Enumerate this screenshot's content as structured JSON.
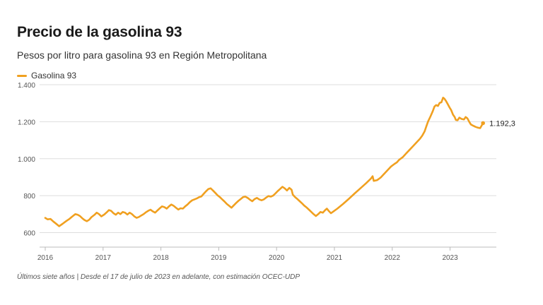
{
  "header": {
    "title": "Precio de la gasolina 93",
    "subtitle": "Pesos por litro para gasolina 93 en Región Metropolitana"
  },
  "legend": {
    "label": "Gasolina 93"
  },
  "footnote": "Últimos siete años | Desde el 17 de julio de 2023 en adelante, con estimación OCEC-UDP",
  "colors": {
    "series": "#f0a020",
    "grid": "#dddddd",
    "axis": "#bbbbbb"
  },
  "chart_data": {
    "type": "line",
    "title": "Precio de la gasolina 93",
    "subtitle": "Pesos por litro para gasolina 93 en Región Metropolitana",
    "xlabel": "",
    "ylabel": "",
    "xlim": [
      2016,
      2023.8
    ],
    "ylim": [
      560,
      1400
    ],
    "x_ticks": [
      2016,
      2017,
      2018,
      2019,
      2020,
      2021,
      2022,
      2023
    ],
    "x_tick_labels": [
      "2016",
      "2017",
      "2018",
      "2019",
      "2020",
      "2021",
      "2022",
      "2023"
    ],
    "y_ticks": [
      600,
      800,
      1000,
      1200,
      1400
    ],
    "y_tick_labels": [
      "600",
      "800",
      "1.000",
      "1.200",
      "1.400"
    ],
    "grid": true,
    "legend_position": "top-left",
    "end_label": "1.192,3",
    "series": [
      {
        "name": "Gasolina 93",
        "color": "#f0a020",
        "points": [
          [
            2016.0,
            680
          ],
          [
            2016.04,
            672
          ],
          [
            2016.09,
            674
          ],
          [
            2016.14,
            660
          ],
          [
            2016.2,
            645
          ],
          [
            2016.24,
            635
          ],
          [
            2016.3,
            648
          ],
          [
            2016.36,
            662
          ],
          [
            2016.42,
            675
          ],
          [
            2016.47,
            688
          ],
          [
            2016.52,
            700
          ],
          [
            2016.56,
            697
          ],
          [
            2016.6,
            690
          ],
          [
            2016.64,
            678
          ],
          [
            2016.68,
            668
          ],
          [
            2016.72,
            662
          ],
          [
            2016.76,
            670
          ],
          [
            2016.8,
            684
          ],
          [
            2016.85,
            696
          ],
          [
            2016.89,
            708
          ],
          [
            2016.93,
            700
          ],
          [
            2016.97,
            688
          ],
          [
            2017.02,
            698
          ],
          [
            2017.07,
            712
          ],
          [
            2017.1,
            722
          ],
          [
            2017.14,
            718
          ],
          [
            2017.18,
            705
          ],
          [
            2017.22,
            697
          ],
          [
            2017.26,
            708
          ],
          [
            2017.3,
            700
          ],
          [
            2017.34,
            712
          ],
          [
            2017.38,
            708
          ],
          [
            2017.42,
            698
          ],
          [
            2017.46,
            708
          ],
          [
            2017.5,
            700
          ],
          [
            2017.54,
            688
          ],
          [
            2017.58,
            680
          ],
          [
            2017.62,
            685
          ],
          [
            2017.66,
            693
          ],
          [
            2017.7,
            700
          ],
          [
            2017.74,
            710
          ],
          [
            2017.78,
            718
          ],
          [
            2017.82,
            724
          ],
          [
            2017.86,
            715
          ],
          [
            2017.9,
            708
          ],
          [
            2017.94,
            720
          ],
          [
            2017.98,
            732
          ],
          [
            2018.02,
            742
          ],
          [
            2018.06,
            738
          ],
          [
            2018.1,
            730
          ],
          [
            2018.14,
            742
          ],
          [
            2018.18,
            752
          ],
          [
            2018.22,
            745
          ],
          [
            2018.26,
            735
          ],
          [
            2018.3,
            725
          ],
          [
            2018.34,
            732
          ],
          [
            2018.38,
            730
          ],
          [
            2018.42,
            742
          ],
          [
            2018.46,
            752
          ],
          [
            2018.5,
            765
          ],
          [
            2018.54,
            775
          ],
          [
            2018.58,
            780
          ],
          [
            2018.62,
            785
          ],
          [
            2018.66,
            792
          ],
          [
            2018.7,
            796
          ],
          [
            2018.74,
            810
          ],
          [
            2018.78,
            824
          ],
          [
            2018.82,
            836
          ],
          [
            2018.86,
            840
          ],
          [
            2018.9,
            828
          ],
          [
            2018.94,
            815
          ],
          [
            2018.98,
            802
          ],
          [
            2019.02,
            792
          ],
          [
            2019.06,
            780
          ],
          [
            2019.1,
            768
          ],
          [
            2019.14,
            755
          ],
          [
            2019.18,
            745
          ],
          [
            2019.22,
            735
          ],
          [
            2019.26,
            748
          ],
          [
            2019.3,
            760
          ],
          [
            2019.34,
            772
          ],
          [
            2019.38,
            782
          ],
          [
            2019.42,
            792
          ],
          [
            2019.46,
            795
          ],
          [
            2019.5,
            788
          ],
          [
            2019.54,
            778
          ],
          [
            2019.58,
            770
          ],
          [
            2019.62,
            782
          ],
          [
            2019.66,
            788
          ],
          [
            2019.7,
            780
          ],
          [
            2019.74,
            775
          ],
          [
            2019.78,
            780
          ],
          [
            2019.82,
            790
          ],
          [
            2019.86,
            798
          ],
          [
            2019.9,
            795
          ],
          [
            2019.94,
            800
          ],
          [
            2019.98,
            812
          ],
          [
            2020.02,
            825
          ],
          [
            2020.06,
            836
          ],
          [
            2020.1,
            848
          ],
          [
            2020.14,
            840
          ],
          [
            2020.18,
            828
          ],
          [
            2020.22,
            842
          ],
          [
            2020.26,
            832
          ],
          [
            2020.28,
            806
          ],
          [
            2020.32,
            792
          ],
          [
            2020.36,
            782
          ],
          [
            2020.4,
            770
          ],
          [
            2020.44,
            758
          ],
          [
            2020.48,
            746
          ],
          [
            2020.52,
            736
          ],
          [
            2020.56,
            724
          ],
          [
            2020.6,
            712
          ],
          [
            2020.64,
            700
          ],
          [
            2020.68,
            690
          ],
          [
            2020.72,
            700
          ],
          [
            2020.76,
            712
          ],
          [
            2020.8,
            708
          ],
          [
            2020.84,
            722
          ],
          [
            2020.87,
            730
          ],
          [
            2020.9,
            718
          ],
          [
            2020.94,
            705
          ],
          [
            2020.98,
            714
          ],
          [
            2021.05,
            730
          ],
          [
            2021.15,
            755
          ],
          [
            2021.25,
            783
          ],
          [
            2021.35,
            812
          ],
          [
            2021.45,
            840
          ],
          [
            2021.55,
            868
          ],
          [
            2021.63,
            892
          ],
          [
            2021.66,
            905
          ],
          [
            2021.68,
            880
          ],
          [
            2021.74,
            884
          ],
          [
            2021.8,
            898
          ],
          [
            2021.86,
            918
          ],
          [
            2021.92,
            938
          ],
          [
            2021.98,
            958
          ],
          [
            2022.04,
            972
          ],
          [
            2022.08,
            980
          ],
          [
            2022.12,
            994
          ],
          [
            2022.18,
            1008
          ],
          [
            2022.24,
            1028
          ],
          [
            2022.3,
            1048
          ],
          [
            2022.36,
            1068
          ],
          [
            2022.42,
            1088
          ],
          [
            2022.48,
            1108
          ],
          [
            2022.52,
            1125
          ],
          [
            2022.56,
            1148
          ],
          [
            2022.59,
            1175
          ],
          [
            2022.62,
            1202
          ],
          [
            2022.66,
            1228
          ],
          [
            2022.7,
            1256
          ],
          [
            2022.73,
            1282
          ],
          [
            2022.76,
            1290
          ],
          [
            2022.79,
            1285
          ],
          [
            2022.82,
            1302
          ],
          [
            2022.85,
            1305
          ],
          [
            2022.88,
            1330
          ],
          [
            2022.9,
            1325
          ],
          [
            2022.93,
            1312
          ],
          [
            2022.96,
            1295
          ],
          [
            2022.99,
            1278
          ],
          [
            2023.02,
            1262
          ],
          [
            2023.05,
            1238
          ],
          [
            2023.08,
            1225
          ],
          [
            2023.1,
            1210
          ],
          [
            2023.13,
            1208
          ],
          [
            2023.16,
            1222
          ],
          [
            2023.2,
            1215
          ],
          [
            2023.24,
            1212
          ],
          [
            2023.27,
            1225
          ],
          [
            2023.3,
            1218
          ],
          [
            2023.33,
            1200
          ],
          [
            2023.36,
            1185
          ],
          [
            2023.4,
            1178
          ],
          [
            2023.44,
            1172
          ],
          [
            2023.48,
            1168
          ],
          [
            2023.52,
            1165
          ],
          [
            2023.55,
            1182
          ],
          [
            2023.57,
            1192.3
          ]
        ]
      }
    ]
  }
}
